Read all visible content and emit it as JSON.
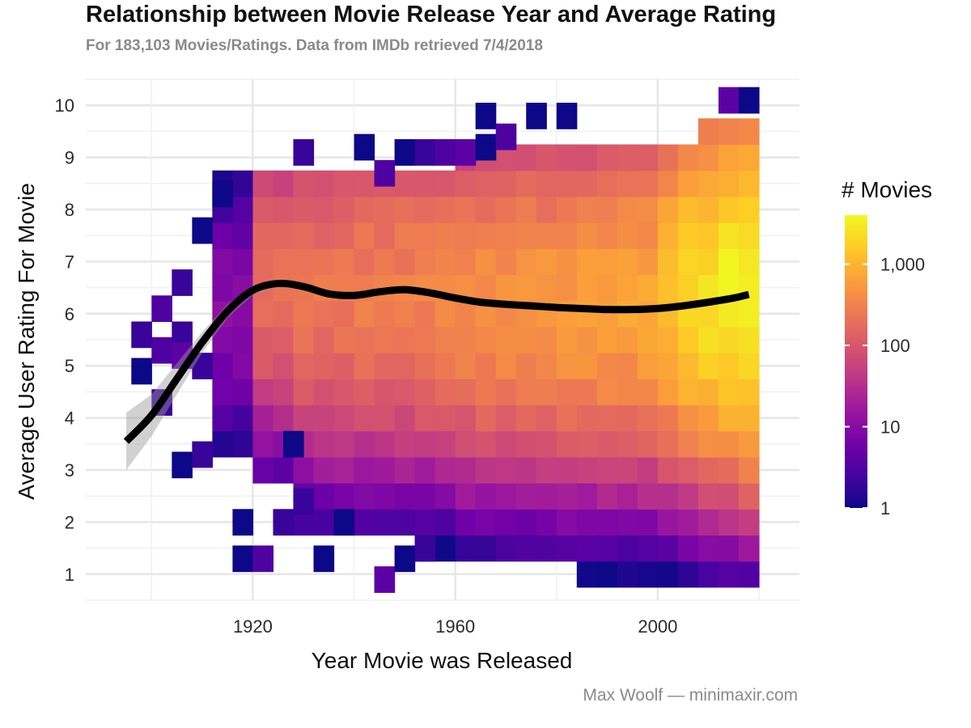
{
  "chart_data": {
    "type": "heatmap",
    "title": "Relationship between Movie Release Year and Average Rating",
    "subtitle": "For 183,103 Movies/Ratings. Data from IMDb retrieved 7/4/2018",
    "caption": "Max Woolf — minimaxir.com",
    "xlabel": "Year Movie was Released",
    "ylabel": "Average User Rating For Movie",
    "xlim": [
      1887,
      2028
    ],
    "ylim": [
      0.5,
      10.5
    ],
    "x_ticks": [
      1920,
      1960,
      2000
    ],
    "y_ticks": [
      1,
      2,
      3,
      4,
      5,
      6,
      7,
      8,
      9,
      10
    ],
    "x_tick_labels": [
      "1920",
      "1960",
      "2000"
    ],
    "y_tick_labels": [
      "1",
      "2",
      "3",
      "4",
      "5",
      "6",
      "7",
      "8",
      "9",
      "10"
    ],
    "grid": true,
    "bin_width_years": 4,
    "bin_height_rating": 0.5,
    "legend": {
      "title": "# Movies",
      "position": "right",
      "scale": "log10",
      "range": [
        1,
        4000
      ],
      "tick_values": [
        1,
        10,
        100,
        1000
      ],
      "tick_labels": [
        "1",
        "10",
        "100",
        "1,000"
      ],
      "palette": [
        "#0d0887",
        "#46039f",
        "#7201a8",
        "#9c179e",
        "#bd3786",
        "#d8576b",
        "#ed7953",
        "#fb9f3a",
        "#fdca26",
        "#f0f921"
      ]
    },
    "smooth_line": {
      "name": "",
      "color": "#000000",
      "x": [
        1895,
        1900,
        1905,
        1910,
        1915,
        1920,
        1925,
        1930,
        1935,
        1940,
        1945,
        1950,
        1955,
        1960,
        1965,
        1970,
        1975,
        1980,
        1985,
        1990,
        1995,
        2000,
        2005,
        2010,
        2015,
        2018
      ],
      "y": [
        3.55,
        4.05,
        4.75,
        5.45,
        6.05,
        6.45,
        6.58,
        6.52,
        6.38,
        6.35,
        6.42,
        6.46,
        6.4,
        6.3,
        6.22,
        6.18,
        6.15,
        6.12,
        6.1,
        6.08,
        6.08,
        6.1,
        6.15,
        6.22,
        6.3,
        6.37
      ],
      "band_lower": [
        3.0,
        3.65,
        4.45,
        5.25,
        5.92,
        6.36,
        6.52,
        6.47,
        6.34,
        6.32,
        6.39,
        6.44,
        6.38,
        6.29,
        6.21,
        6.17,
        6.14,
        6.11,
        6.09,
        6.07,
        6.07,
        6.09,
        6.14,
        6.21,
        6.29,
        6.35
      ],
      "band_upper": [
        4.1,
        4.45,
        5.05,
        5.65,
        6.18,
        6.54,
        6.64,
        6.57,
        6.42,
        6.38,
        6.45,
        6.48,
        6.42,
        6.31,
        6.23,
        6.19,
        6.16,
        6.13,
        6.11,
        6.09,
        6.09,
        6.11,
        6.16,
        6.23,
        6.31,
        6.39
      ]
    },
    "cells": [
      {
        "x": 1902,
        "y": 6.1,
        "count": 3
      },
      {
        "x": 1906,
        "y": 6.6,
        "count": 2
      },
      {
        "x": 1906,
        "y": 5.6,
        "count": 2
      },
      {
        "x": 1910,
        "y": 7.6,
        "count": 1
      },
      {
        "x": 1914,
        "y": 8.3,
        "count": 1
      },
      {
        "x": 1898,
        "y": 5.6,
        "count": 2
      },
      {
        "x": 1898,
        "y": 4.9,
        "count": 1
      },
      {
        "x": 1902,
        "y": 5.3,
        "count": 3
      },
      {
        "x": 1902,
        "y": 4.3,
        "count": 2
      },
      {
        "x": 1906,
        "y": 5.2,
        "count": 4
      },
      {
        "x": 1906,
        "y": 3.1,
        "count": 1
      },
      {
        "x": 1910,
        "y": 5.0,
        "count": 2
      },
      {
        "x": 1910,
        "y": 3.3,
        "count": 2
      },
      {
        "x": 1918,
        "y": 2.0,
        "count": 1
      },
      {
        "x": 1918,
        "y": 1.3,
        "count": 1
      },
      {
        "x": 1922,
        "y": 1.3,
        "count": 3
      },
      {
        "x": 1926,
        "y": 2.0,
        "count": 2
      },
      {
        "x": 1930,
        "y": 2.4,
        "count": 2
      },
      {
        "x": 1934,
        "y": 1.3,
        "count": 1
      },
      {
        "x": 1938,
        "y": 2.0,
        "count": 1
      },
      {
        "x": 1946,
        "y": 0.9,
        "count": 4
      },
      {
        "x": 1950,
        "y": 1.3,
        "count": 1
      },
      {
        "x": 1954,
        "y": 1.5,
        "count": 2
      },
      {
        "x": 1958,
        "y": 2.0,
        "count": 3
      },
      {
        "x": 1928,
        "y": 3.5,
        "count": 1
      },
      {
        "x": 1976,
        "y": 9.8,
        "count": 1
      },
      {
        "x": 1982,
        "y": 9.8,
        "count": 1
      },
      {
        "x": 1966,
        "y": 9.8,
        "count": 1
      },
      {
        "x": 2014,
        "y": 10.1,
        "count": 4
      },
      {
        "x": 2018,
        "y": 10.1,
        "count": 1
      },
      {
        "x": 1930,
        "y": 9.1,
        "count": 2
      },
      {
        "x": 1942,
        "y": 9.2,
        "count": 1
      },
      {
        "x": 1950,
        "y": 9.1,
        "count": 1
      },
      {
        "x": 1954,
        "y": 9.1,
        "count": 2
      },
      {
        "x": 1946,
        "y": 8.7,
        "count": 3
      },
      {
        "x": 1958,
        "y": 9.1,
        "count": 3
      },
      {
        "x": 1962,
        "y": 9.1,
        "count": 4
      },
      {
        "x": 1966,
        "y": 9.2,
        "count": 1
      },
      {
        "x": 1970,
        "y": 9.4,
        "count": 3
      }
    ]
  }
}
